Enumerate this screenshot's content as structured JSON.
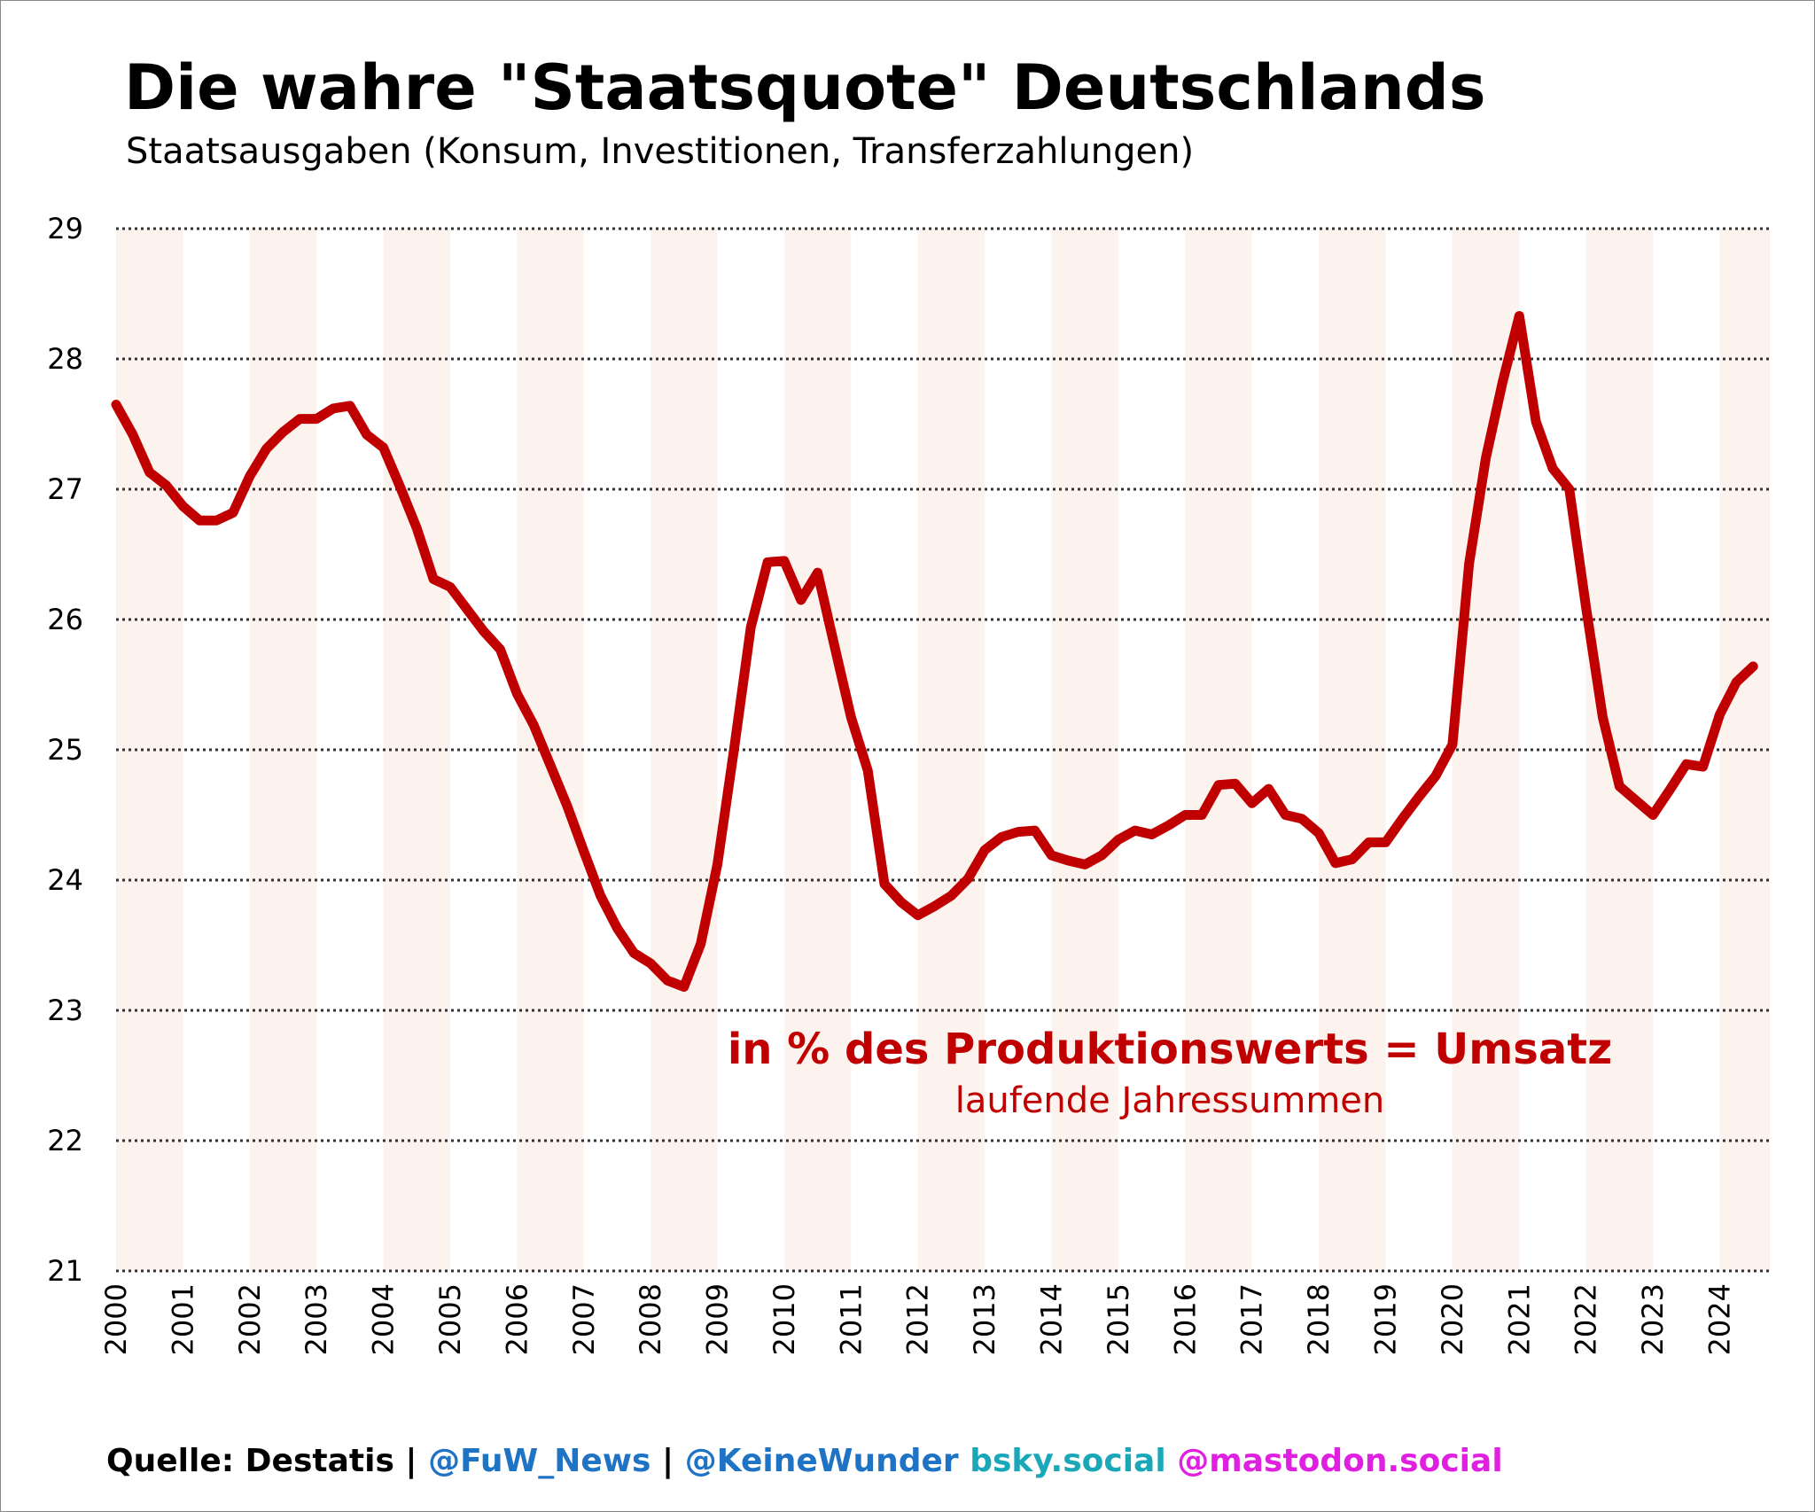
{
  "title": "Die wahre \"Staatsquote\" Deutschlands",
  "subtitle": "Staatsausgaben (Konsum, Investitionen, Transferzahlungen)",
  "annotation": {
    "main": "in % des Produktionswerts = Umsatz",
    "sub": "laufende Jahressummen"
  },
  "footer": {
    "source": "Quelle: Destatis",
    "sep1": " | ",
    "fuw": "@FuW_News",
    "sep2": " | ",
    "keinewunder": "@KeineWunder",
    "bsky": " bsky.social",
    "mastodon": " @mastodon.social"
  },
  "colors": {
    "line": "#c00000",
    "band": "#fdf3ee",
    "grid": "#333333",
    "fuw": "#1f73c4",
    "keinewunder": "#1f73c4",
    "bsky": "#1aa7b8",
    "mastodon": "#e020e0"
  },
  "chart_data": {
    "type": "line",
    "title": "Die wahre \"Staatsquote\" Deutschlands",
    "subtitle": "Staatsausgaben (Konsum, Investitionen, Transferzahlungen)",
    "xlabel": "",
    "ylabel": "",
    "ylim": [
      21,
      29
    ],
    "yticks": [
      21,
      22,
      23,
      24,
      25,
      26,
      27,
      28,
      29
    ],
    "xlim": [
      2000,
      2024.75
    ],
    "xticks": [
      "2000",
      "2001",
      "2002",
      "2003",
      "2004",
      "2005",
      "2006",
      "2007",
      "2008",
      "2009",
      "2010",
      "2011",
      "2012",
      "2013",
      "2014",
      "2015",
      "2016",
      "2017",
      "2018",
      "2019",
      "2020",
      "2021",
      "2022",
      "2023",
      "2024"
    ],
    "grid": "horizontal-dotted",
    "shaded_years": [
      2000,
      2002,
      2004,
      2006,
      2008,
      2010,
      2012,
      2014,
      2016,
      2018,
      2020,
      2022,
      2024
    ],
    "series": [
      {
        "values": [
          [
            2000.0,
            27.65
          ],
          [
            2000.25,
            27.42
          ],
          [
            2000.5,
            27.13
          ],
          [
            2000.75,
            27.03
          ],
          [
            2001.0,
            26.87
          ],
          [
            2001.25,
            26.76
          ],
          [
            2001.5,
            26.76
          ],
          [
            2001.75,
            26.82
          ],
          [
            2002.0,
            27.1
          ],
          [
            2002.25,
            27.31
          ],
          [
            2002.5,
            27.44
          ],
          [
            2002.75,
            27.54
          ],
          [
            2003.0,
            27.54
          ],
          [
            2003.25,
            27.62
          ],
          [
            2003.5,
            27.64
          ],
          [
            2003.75,
            27.42
          ],
          [
            2004.0,
            27.32
          ],
          [
            2004.25,
            27.02
          ],
          [
            2004.5,
            26.7
          ],
          [
            2004.75,
            26.31
          ],
          [
            2005.0,
            26.25
          ],
          [
            2005.25,
            26.08
          ],
          [
            2005.5,
            25.91
          ],
          [
            2005.75,
            25.77
          ],
          [
            2006.0,
            25.43
          ],
          [
            2006.25,
            25.19
          ],
          [
            2006.5,
            24.88
          ],
          [
            2006.75,
            24.57
          ],
          [
            2007.0,
            24.22
          ],
          [
            2007.25,
            23.88
          ],
          [
            2007.5,
            23.63
          ],
          [
            2007.75,
            23.44
          ],
          [
            2008.0,
            23.36
          ],
          [
            2008.25,
            23.23
          ],
          [
            2008.5,
            23.18
          ],
          [
            2008.75,
            23.51
          ],
          [
            2009.0,
            24.12
          ],
          [
            2009.25,
            25.01
          ],
          [
            2009.5,
            25.94
          ],
          [
            2009.75,
            26.44
          ],
          [
            2010.0,
            26.45
          ],
          [
            2010.25,
            26.15
          ],
          [
            2010.5,
            26.36
          ],
          [
            2010.75,
            25.8
          ],
          [
            2011.0,
            25.25
          ],
          [
            2011.25,
            24.84
          ],
          [
            2011.5,
            23.97
          ],
          [
            2011.75,
            23.83
          ],
          [
            2012.0,
            23.73
          ],
          [
            2012.25,
            23.8
          ],
          [
            2012.5,
            23.88
          ],
          [
            2012.75,
            24.01
          ],
          [
            2013.0,
            24.23
          ],
          [
            2013.25,
            24.33
          ],
          [
            2013.5,
            24.37
          ],
          [
            2013.75,
            24.38
          ],
          [
            2014.0,
            24.19
          ],
          [
            2014.25,
            24.15
          ],
          [
            2014.5,
            24.12
          ],
          [
            2014.75,
            24.19
          ],
          [
            2015.0,
            24.31
          ],
          [
            2015.25,
            24.38
          ],
          [
            2015.5,
            24.35
          ],
          [
            2015.75,
            24.42
          ],
          [
            2016.0,
            24.5
          ],
          [
            2016.25,
            24.5
          ],
          [
            2016.5,
            24.73
          ],
          [
            2016.75,
            24.74
          ],
          [
            2017.0,
            24.59
          ],
          [
            2017.25,
            24.7
          ],
          [
            2017.5,
            24.5
          ],
          [
            2017.75,
            24.47
          ],
          [
            2018.0,
            24.36
          ],
          [
            2018.25,
            24.13
          ],
          [
            2018.5,
            24.16
          ],
          [
            2018.75,
            24.29
          ],
          [
            2019.0,
            24.29
          ],
          [
            2019.25,
            24.47
          ],
          [
            2019.5,
            24.64
          ],
          [
            2019.75,
            24.8
          ],
          [
            2020.0,
            25.04
          ],
          [
            2020.25,
            26.43
          ],
          [
            2020.5,
            27.24
          ],
          [
            2020.75,
            27.82
          ],
          [
            2021.0,
            28.33
          ],
          [
            2021.25,
            27.52
          ],
          [
            2021.5,
            27.16
          ],
          [
            2021.75,
            27.0
          ],
          [
            2022.0,
            26.09
          ],
          [
            2022.25,
            25.25
          ],
          [
            2022.5,
            24.72
          ],
          [
            2022.75,
            24.61
          ],
          [
            2023.0,
            24.5
          ],
          [
            2023.25,
            24.69
          ],
          [
            2023.5,
            24.89
          ],
          [
            2023.75,
            24.87
          ],
          [
            2024.0,
            25.27
          ],
          [
            2024.25,
            25.52
          ],
          [
            2024.5,
            25.64
          ]
        ]
      }
    ]
  }
}
